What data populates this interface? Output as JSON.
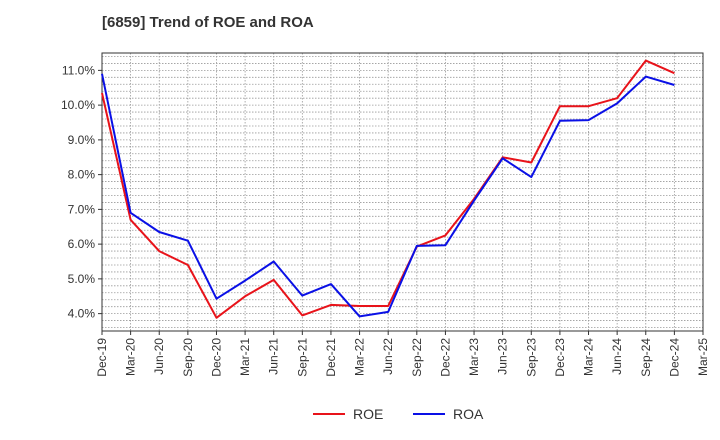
{
  "chart_data": {
    "type": "line",
    "title": "[6859]  Trend of ROE and ROA",
    "xlabel": "",
    "ylabel": "",
    "x": [
      "Dec-19",
      "Mar-20",
      "Jun-20",
      "Sep-20",
      "Dec-20",
      "Mar-21",
      "Jun-21",
      "Sep-21",
      "Dec-21",
      "Mar-22",
      "Jun-22",
      "Sep-22",
      "Dec-22",
      "Mar-23",
      "Jun-23",
      "Sep-23",
      "Dec-23",
      "Mar-24",
      "Jun-24",
      "Sep-24",
      "Dec-24",
      "Mar-25"
    ],
    "yticks": [
      "4.0%",
      "5.0%",
      "6.0%",
      "7.0%",
      "8.0%",
      "9.0%",
      "10.0%",
      "11.0%"
    ],
    "ylim": [
      3.5,
      11.5
    ],
    "grid": true,
    "legend": "bottom",
    "series": [
      {
        "name": "ROE",
        "color": "#e8131a",
        "values": [
          10.35,
          6.7,
          5.8,
          5.4,
          3.88,
          4.5,
          4.97,
          3.95,
          4.25,
          4.22,
          4.22,
          5.93,
          6.25,
          7.3,
          8.5,
          8.35,
          9.97,
          9.97,
          10.2,
          11.28,
          10.92,
          null
        ]
      },
      {
        "name": "ROA",
        "color": "#0a10e6",
        "values": [
          10.9,
          6.9,
          6.35,
          6.1,
          4.43,
          4.95,
          5.5,
          4.52,
          4.85,
          3.92,
          4.05,
          5.95,
          5.97,
          7.25,
          8.47,
          7.93,
          9.55,
          9.57,
          10.05,
          10.82,
          10.58,
          null
        ]
      }
    ]
  }
}
